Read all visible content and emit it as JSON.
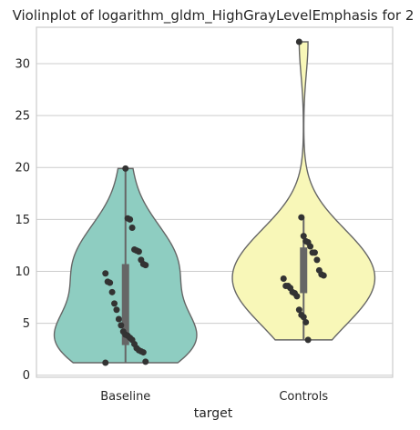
{
  "chart_data": {
    "type": "violin",
    "title": "Violinplot of logarithm_gldm_HighGrayLevelEmphasis for 2",
    "xlabel": "target",
    "ylabel": "",
    "categories": [
      "Baseline",
      "Controls"
    ],
    "ylim": [
      -0.2,
      33.5
    ],
    "yticks": [
      "0",
      "5",
      "10",
      "15",
      "20",
      "25",
      "30"
    ],
    "grid": true,
    "colors": [
      "#8ecdc1",
      "#f8f7b8"
    ],
    "series": [
      {
        "points": [
          1.2,
          1.3,
          2.2,
          2.3,
          2.4,
          2.6,
          3.0,
          3.4,
          3.6,
          3.8,
          3.9,
          4.2,
          4.8,
          5.4,
          6.3,
          6.9,
          8.0,
          8.9,
          9.0,
          9.8,
          10.6,
          10.7,
          11.1,
          11.9,
          12.0,
          12.1,
          14.2,
          15.0,
          15.1,
          19.9
        ],
        "violin_range": [
          1.2,
          19.9
        ],
        "quartiles": [
          2.9,
          10.7
        ],
        "box_range": [
          1.2,
          19.9
        ]
      },
      {
        "points": [
          3.4,
          5.1,
          5.6,
          5.8,
          6.3,
          7.6,
          7.9,
          8.0,
          8.4,
          8.6,
          8.6,
          9.3,
          9.6,
          9.7,
          10.1,
          11.1,
          11.8,
          11.8,
          12.4,
          12.8,
          12.9,
          13.4,
          15.2,
          32.1
        ],
        "violin_range": [
          3.4,
          32.1
        ],
        "quartiles": [
          7.9,
          12.3
        ],
        "box_range": [
          3.4,
          15.2
        ]
      }
    ]
  }
}
